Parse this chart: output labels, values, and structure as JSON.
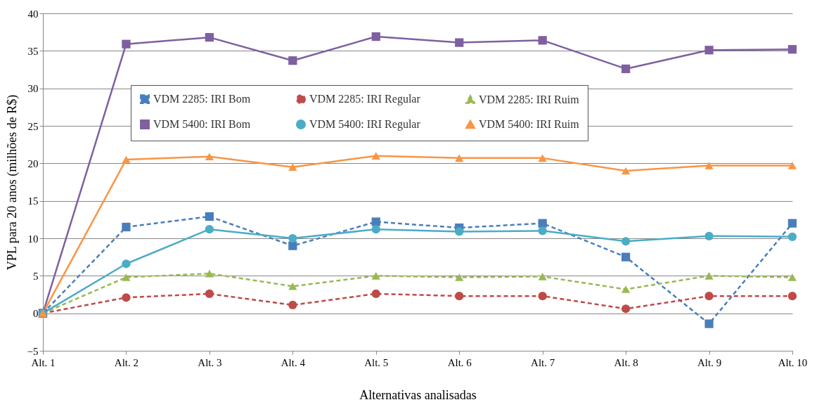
{
  "chart_data": {
    "type": "line",
    "xlabel": "Alternativas analisadas",
    "ylabel": "VPL para 20 anos (milhões de R$)",
    "categories": [
      "Alt. 1",
      "Alt. 2",
      "Alt. 3",
      "Alt. 4",
      "Alt. 5",
      "Alt. 6",
      "Alt. 7",
      "Alt. 8",
      "Alt. 9",
      "Alt. 10"
    ],
    "ylim": [
      -5,
      40
    ],
    "yticks": [
      -5,
      0,
      5,
      10,
      15,
      20,
      25,
      30,
      35,
      40
    ],
    "grid": "y",
    "legend": "top",
    "series": [
      {
        "name": "VDM 2285: IRI Bom",
        "color": "#4a7ebb",
        "marker": "square",
        "line_style": "dashed",
        "values": [
          0,
          11.5,
          12.9,
          9.0,
          12.2,
          11.4,
          12.0,
          7.5,
          -1.4,
          12.0
        ]
      },
      {
        "name": "VDM 2285: IRI Regular",
        "color": "#be4b48",
        "marker": "circle",
        "line_style": "dashed",
        "values": [
          0,
          2.1,
          2.6,
          1.1,
          2.6,
          2.3,
          2.3,
          0.6,
          2.3,
          2.3
        ]
      },
      {
        "name": "VDM 2285: IRI Ruim",
        "color": "#98b954",
        "marker": "triangle",
        "line_style": "dashed",
        "values": [
          0,
          4.8,
          5.3,
          3.6,
          5.0,
          4.8,
          4.9,
          3.2,
          5.0,
          4.8
        ]
      },
      {
        "name": "VDM 5400: IRI Bom",
        "color": "#7e60a0",
        "marker": "square",
        "line_style": "solid",
        "values": [
          0,
          35.9,
          36.8,
          33.7,
          36.9,
          36.1,
          36.4,
          32.6,
          35.1,
          35.2
        ]
      },
      {
        "name": "VDM 5400: IRI Regular",
        "color": "#4bacc6",
        "marker": "circle",
        "line_style": "solid",
        "values": [
          0,
          6.6,
          11.2,
          10.0,
          11.2,
          10.9,
          11.0,
          9.6,
          10.3,
          10.2
        ]
      },
      {
        "name": "VDM 5400: IRI Ruim",
        "color": "#f79646",
        "marker": "triangle",
        "line_style": "solid",
        "values": [
          0,
          20.5,
          20.9,
          19.5,
          21.0,
          20.7,
          20.7,
          19.0,
          19.7,
          19.7
        ]
      }
    ]
  }
}
